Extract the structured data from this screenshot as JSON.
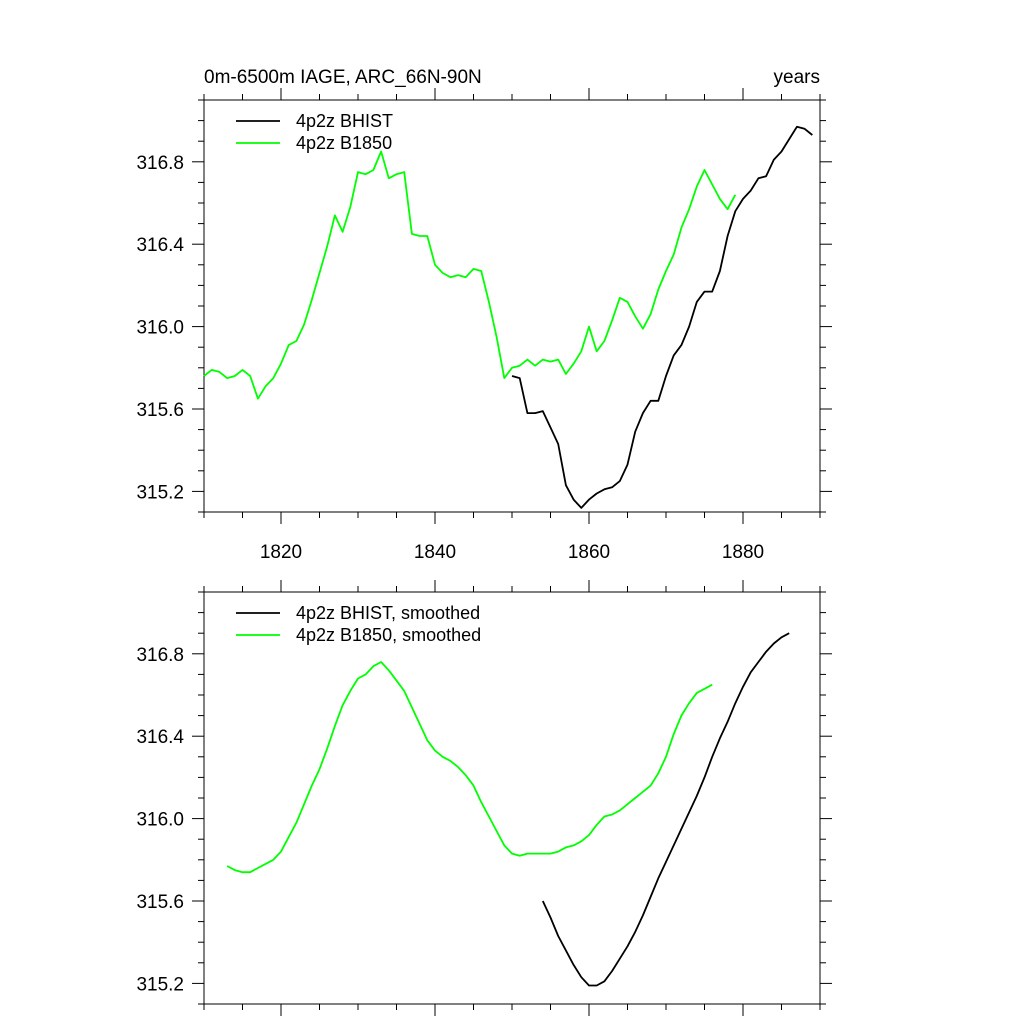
{
  "figure": {
    "title_left": "0m-6500m IAGE, ARC_66N-90N",
    "title_right": "years"
  },
  "chart_data": [
    {
      "type": "line",
      "title": "0m-6500m IAGE, ARC_66N-90N",
      "units": "years",
      "xlim": [
        1810,
        1890
      ],
      "ylim": [
        315.1,
        317.1
      ],
      "x_ticks": [
        1820,
        1840,
        1860,
        1880
      ],
      "x_tick_labels": [
        "1820",
        "1840",
        "1860",
        "1880"
      ],
      "y_ticks": [
        315.2,
        315.6,
        316.0,
        316.4,
        316.8
      ],
      "y_tick_labels": [
        "315.2",
        "315.6",
        "316.0",
        "316.4",
        "316.8"
      ],
      "legend_position": "top-left",
      "series": [
        {
          "name": "4p2z BHIST",
          "color": "#000000",
          "x": [
            1850,
            1851,
            1852,
            1853,
            1854,
            1855,
            1856,
            1857,
            1858,
            1859,
            1860,
            1861,
            1862,
            1863,
            1864,
            1865,
            1866,
            1867,
            1868,
            1869,
            1870,
            1871,
            1872,
            1873,
            1874,
            1875,
            1876,
            1877,
            1878,
            1879,
            1880,
            1881,
            1882,
            1883,
            1884,
            1885,
            1886,
            1887,
            1888,
            1889
          ],
          "y": [
            315.76,
            315.75,
            315.58,
            315.58,
            315.59,
            315.51,
            315.43,
            315.23,
            315.16,
            315.12,
            315.16,
            315.19,
            315.21,
            315.22,
            315.25,
            315.33,
            315.49,
            315.58,
            315.64,
            315.64,
            315.76,
            315.86,
            315.91,
            316.0,
            316.12,
            316.17,
            316.17,
            316.27,
            316.44,
            316.56,
            316.62,
            316.66,
            316.72,
            316.73,
            316.81,
            316.85,
            316.91,
            316.97,
            316.96,
            316.93
          ]
        },
        {
          "name": "4p2z B1850",
          "color": "#00ff00",
          "x": [
            1810,
            1811,
            1812,
            1813,
            1814,
            1815,
            1816,
            1817,
            1818,
            1819,
            1820,
            1821,
            1822,
            1823,
            1824,
            1825,
            1826,
            1827,
            1828,
            1829,
            1830,
            1831,
            1832,
            1833,
            1834,
            1835,
            1836,
            1837,
            1838,
            1839,
            1840,
            1841,
            1842,
            1843,
            1844,
            1845,
            1846,
            1847,
            1848,
            1849,
            1850,
            1851,
            1852,
            1853,
            1854,
            1855,
            1856,
            1857,
            1858,
            1859,
            1860,
            1861,
            1862,
            1863,
            1864,
            1865,
            1866,
            1867,
            1868,
            1869,
            1870,
            1871,
            1872,
            1873,
            1874,
            1875,
            1876,
            1877,
            1878,
            1879
          ],
          "y": [
            315.76,
            315.79,
            315.78,
            315.75,
            315.76,
            315.79,
            315.76,
            315.65,
            315.71,
            315.75,
            315.82,
            315.91,
            315.93,
            316.01,
            316.13,
            316.26,
            316.39,
            316.54,
            316.46,
            316.58,
            316.75,
            316.74,
            316.76,
            316.85,
            316.72,
            316.74,
            316.75,
            316.45,
            316.44,
            316.44,
            316.3,
            316.26,
            316.24,
            316.25,
            316.24,
            316.28,
            316.27,
            316.12,
            315.95,
            315.75,
            315.8,
            315.81,
            315.84,
            315.81,
            315.84,
            315.83,
            315.84,
            315.77,
            315.82,
            315.88,
            316.0,
            315.88,
            315.93,
            316.03,
            316.14,
            316.12,
            316.05,
            315.99,
            316.06,
            316.18,
            316.27,
            316.35,
            316.48,
            316.57,
            316.68,
            316.76,
            316.69,
            316.62,
            316.57,
            316.64
          ]
        }
      ]
    },
    {
      "type": "line",
      "xlim": [
        1810,
        1890
      ],
      "ylim": [
        315.1,
        317.1
      ],
      "y_ticks": [
        315.2,
        315.6,
        316.0,
        316.4,
        316.8
      ],
      "y_tick_labels": [
        "315.2",
        "315.6",
        "316.0",
        "316.4",
        "316.8"
      ],
      "legend_position": "top-left",
      "series": [
        {
          "name": "4p2z BHIST, smoothed",
          "color": "#000000",
          "x": [
            1854,
            1855,
            1856,
            1857,
            1858,
            1859,
            1860,
            1861,
            1862,
            1863,
            1864,
            1865,
            1866,
            1867,
            1868,
            1869,
            1870,
            1871,
            1872,
            1873,
            1874,
            1875,
            1876,
            1877,
            1878,
            1879,
            1880,
            1881,
            1882,
            1883,
            1884,
            1885,
            1886
          ],
          "y": [
            315.6,
            315.52,
            315.43,
            315.36,
            315.29,
            315.23,
            315.19,
            315.19,
            315.21,
            315.26,
            315.32,
            315.38,
            315.45,
            315.53,
            315.62,
            315.71,
            315.79,
            315.87,
            315.95,
            316.03,
            316.11,
            316.2,
            316.3,
            316.39,
            316.47,
            316.56,
            316.64,
            316.71,
            316.76,
            316.81,
            316.85,
            316.88,
            316.9
          ]
        },
        {
          "name": "4p2z B1850, smoothed",
          "color": "#00ff00",
          "x": [
            1813,
            1814,
            1815,
            1816,
            1817,
            1818,
            1819,
            1820,
            1821,
            1822,
            1823,
            1824,
            1825,
            1826,
            1827,
            1828,
            1829,
            1830,
            1831,
            1832,
            1833,
            1834,
            1835,
            1836,
            1837,
            1838,
            1839,
            1840,
            1841,
            1842,
            1843,
            1844,
            1845,
            1846,
            1847,
            1848,
            1849,
            1850,
            1851,
            1852,
            1853,
            1854,
            1855,
            1856,
            1857,
            1858,
            1859,
            1860,
            1861,
            1862,
            1863,
            1864,
            1865,
            1866,
            1867,
            1868,
            1869,
            1870,
            1871,
            1872,
            1873,
            1874,
            1875,
            1876
          ],
          "y": [
            315.77,
            315.75,
            315.74,
            315.74,
            315.76,
            315.78,
            315.8,
            315.84,
            315.91,
            315.98,
            316.07,
            316.16,
            316.24,
            316.34,
            316.45,
            316.55,
            316.62,
            316.68,
            316.7,
            316.74,
            316.76,
            316.72,
            316.67,
            316.62,
            316.54,
            316.46,
            316.38,
            316.33,
            316.3,
            316.28,
            316.25,
            316.21,
            316.16,
            316.08,
            316.01,
            315.94,
            315.87,
            315.83,
            315.82,
            315.83,
            315.83,
            315.83,
            315.83,
            315.84,
            315.86,
            315.87,
            315.89,
            315.92,
            315.97,
            316.01,
            316.02,
            316.04,
            316.07,
            316.1,
            316.13,
            316.16,
            316.22,
            316.3,
            316.41,
            316.5,
            316.56,
            316.61,
            316.63,
            316.65
          ]
        }
      ]
    }
  ]
}
